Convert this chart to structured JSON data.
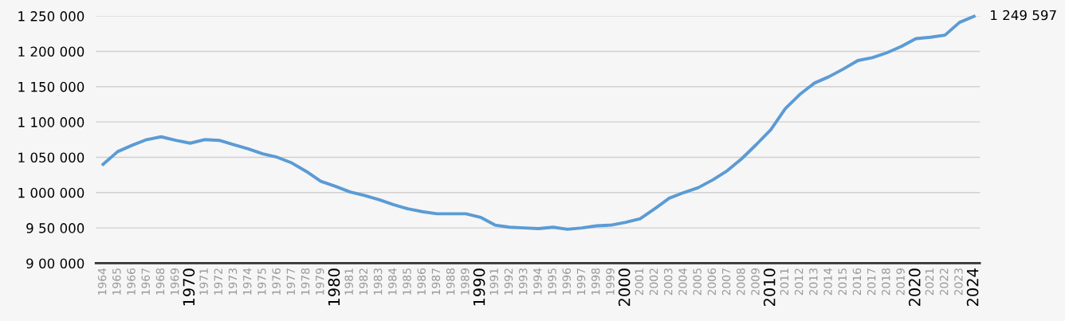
{
  "chart_data": {
    "type": "line",
    "categories": [
      "1964",
      "1965",
      "1966",
      "1967",
      "1968",
      "1969",
      "1970",
      "1971",
      "1972",
      "1973",
      "1974",
      "1975",
      "1976",
      "1977",
      "1978",
      "1979",
      "1980",
      "1981",
      "1982",
      "1983",
      "1984",
      "1985",
      "1986",
      "1987",
      "1988",
      "1989",
      "1990",
      "1991",
      "1992",
      "1993",
      "1994",
      "1995",
      "1996",
      "1997",
      "1998",
      "1999",
      "2000",
      "2001",
      "2002",
      "2003",
      "2004",
      "2005",
      "2006",
      "2007",
      "2008",
      "2009",
      "2010",
      "2011",
      "2012",
      "2013",
      "2014",
      "2015",
      "2016",
      "2017",
      "2018",
      "2019",
      "2020",
      "2021",
      "2022",
      "2023",
      "2024"
    ],
    "series": [
      {
        "color": "#5b9bd5",
        "values": [
          1040000,
          1058000,
          1067000,
          1075000,
          1079000,
          1074000,
          1070000,
          1075000,
          1074000,
          1068000,
          1062000,
          1055000,
          1050000,
          1042000,
          1030000,
          1016000,
          1009000,
          1001000,
          996000,
          990000,
          983000,
          977000,
          973000,
          970000,
          970000,
          970000,
          965000,
          954000,
          951000,
          950000,
          949000,
          951000,
          948000,
          950000,
          953000,
          954000,
          958000,
          963000,
          977000,
          992000,
          1000000,
          1007000,
          1018000,
          1031000,
          1048000,
          1068000,
          1089000,
          1119000,
          1139000,
          1155000,
          1164000,
          1175000,
          1187000,
          1191000,
          1198000,
          1207000,
          1218000,
          1220000,
          1223000,
          1241000,
          1249597
        ],
        "value_labels": [
          null,
          null,
          null,
          null,
          null,
          null,
          null,
          null,
          null,
          null,
          null,
          null,
          null,
          null,
          null,
          null,
          null,
          null,
          null,
          null,
          null,
          null,
          null,
          null,
          null,
          null,
          null,
          null,
          null,
          null,
          null,
          null,
          null,
          null,
          null,
          null,
          null,
          null,
          null,
          null,
          null,
          null,
          null,
          null,
          null,
          null,
          null,
          null,
          null,
          null,
          null,
          null,
          null,
          null,
          null,
          null,
          null,
          null,
          null,
          null,
          "1 249 597"
        ]
      }
    ],
    "ylim": [
      900000,
      1250000
    ],
    "yticks": [
      {
        "value": 900000,
        "label": "9 00 000"
      },
      {
        "value": 950000,
        "label": "9 50 000"
      },
      {
        "value": 1000000,
        "label": "1 000 000"
      },
      {
        "value": 1050000,
        "label": "1 050 000"
      },
      {
        "value": 1100000,
        "label": "1 100 000"
      },
      {
        "value": 1150000,
        "label": "1 150 000"
      },
      {
        "value": 1200000,
        "label": "1 200 000"
      },
      {
        "value": 1250000,
        "label": "1 250 000"
      }
    ],
    "grid": "y",
    "marker": "none",
    "line_style": "solid"
  }
}
